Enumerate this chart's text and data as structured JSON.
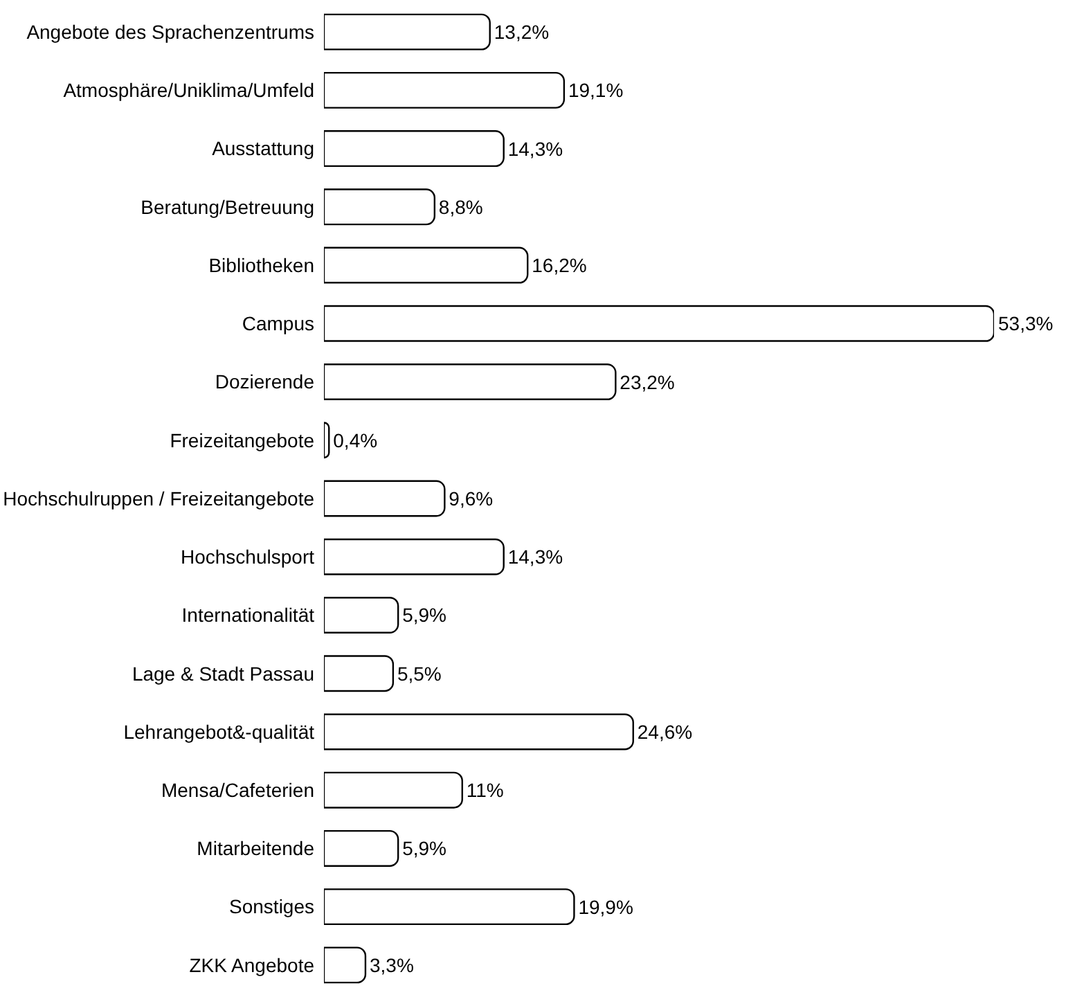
{
  "chart_data": {
    "type": "bar",
    "orientation": "horizontal",
    "categories": [
      "Angebote des Sprachenzentrums",
      "Atmosphäre/Uniklima/Umfeld",
      "Ausstattung",
      "Beratung/Betreuung",
      "Bibliotheken",
      "Campus",
      "Dozierende",
      "Freizeitangebote",
      "Hochschulruppen / Freizeitangebote",
      "Hochschulsport",
      "Internationalität",
      "Lage & Stadt Passau",
      "Lehrangebot&-qualität",
      "Mensa/Cafeterien",
      "Mitarbeitende",
      "Sonstiges",
      "ZKK Angebote"
    ],
    "values": [
      13.2,
      19.1,
      14.3,
      8.8,
      16.2,
      53.3,
      23.2,
      0.4,
      9.6,
      14.3,
      5.9,
      5.5,
      24.6,
      11,
      5.9,
      19.9,
      3.3
    ],
    "value_labels": [
      "13,2%",
      "19,1%",
      "14,3%",
      "8,8%",
      "16,2%",
      "53,3%",
      "23,2%",
      "0,4%",
      "9,6%",
      "14,3%",
      "5,9%",
      "5,5%",
      "24,6%",
      "11%",
      "5,9%",
      "19,9%",
      "3,3%"
    ],
    "color": "#ffffff",
    "tick_labels": "y",
    "legend": false
  }
}
